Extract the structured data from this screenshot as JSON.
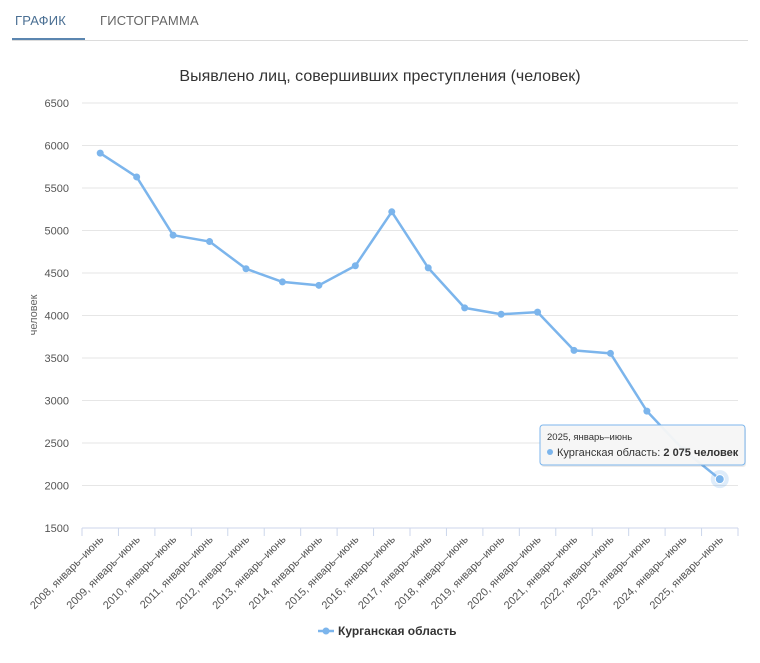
{
  "tabs": [
    {
      "label": "ГРАФИК",
      "active": true
    },
    {
      "label": "ГИСТОГРАММА",
      "active": false
    }
  ],
  "chart_data": {
    "type": "line",
    "title": "Выявлено лиц, совершивших преступления (человек)",
    "xlabel": "",
    "ylabel": "человек",
    "ylim": [
      1500,
      6500
    ],
    "yticks": [
      1500,
      2000,
      2500,
      3000,
      3500,
      4000,
      4500,
      5000,
      5500,
      6000,
      6500
    ],
    "grid": true,
    "legend_position": "bottom-center",
    "categories": [
      "2008, январь–июнь",
      "2009, январь–июнь",
      "2010, январь–июнь",
      "2011, январь–июнь",
      "2012, январь–июнь",
      "2013, январь–июнь",
      "2014, январь–июнь",
      "2015, январь–июнь",
      "2016, январь–июнь",
      "2017, январь–июнь",
      "2018, январь–июнь",
      "2019, январь–июнь",
      "2020, январь–июнь",
      "2021, январь–июнь",
      "2022, январь–июнь",
      "2023, январь–июнь",
      "2024, январь–июнь",
      "2025, январь–июнь"
    ],
    "series": [
      {
        "name": "Курганская область",
        "color": "#7cb5ec",
        "values": [
          5910,
          5630,
          4945,
          4870,
          4550,
          4395,
          4355,
          4585,
          5220,
          4560,
          4090,
          4015,
          4040,
          3590,
          3555,
          2875,
          2420,
          2075
        ]
      }
    ],
    "tooltip": {
      "header": "2025, январь–июнь",
      "series": "Курганская область",
      "value": "2 075 человек"
    }
  }
}
